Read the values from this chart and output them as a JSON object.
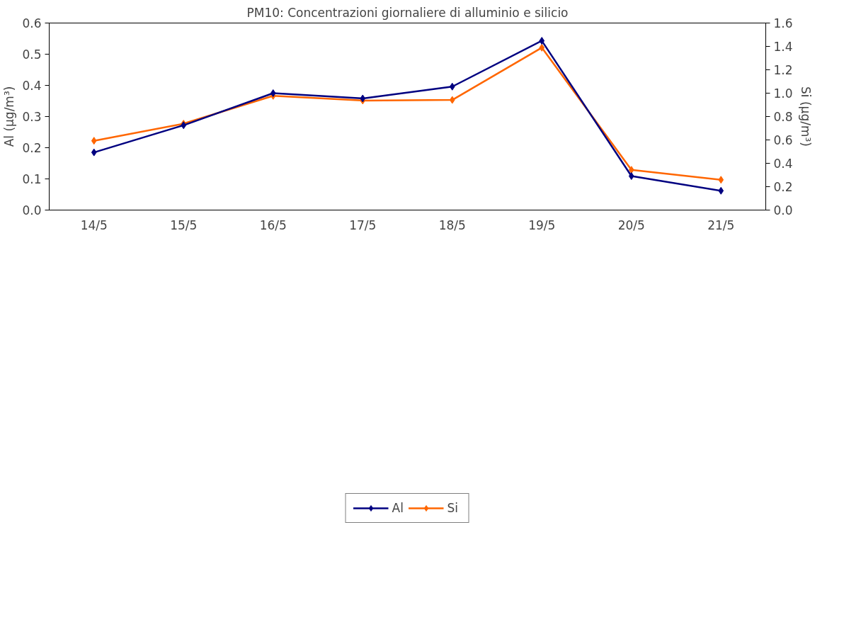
{
  "chart_data": {
    "type": "line",
    "title": "PM10: Concentrazioni giornaliere di alluminio e silicio",
    "ylabel": "Al (µg/m³)",
    "y2label": "Si (µg/m³)",
    "categories": [
      "14/5",
      "15/5",
      "16/5",
      "17/5",
      "18/5",
      "19/5",
      "20/5",
      "21/5"
    ],
    "series": [
      {
        "name": "Al",
        "color": "#000080",
        "values": [
          0.185,
          0.272,
          0.375,
          0.358,
          0.396,
          0.543,
          0.109,
          0.062
        ]
      },
      {
        "name": "Si",
        "color": "#ff6600",
        "axis": "y2",
        "values": [
          0.593,
          0.739,
          0.977,
          0.937,
          0.942,
          1.389,
          0.344,
          0.259
        ]
      }
    ],
    "ylim": [
      0,
      0.6
    ],
    "yticks": [
      {
        "value": 0,
        "label": "0.0"
      },
      0.1,
      0.2,
      0.3,
      0.4,
      0.5,
      0.6
    ],
    "y2lim": [
      0,
      1.6
    ],
    "y2ticks": [
      {
        "value": 0,
        "label": "0.0"
      },
      0.2,
      0.4,
      0.6,
      0.8,
      {
        "value": 1,
        "label": "1.0"
      },
      1.2,
      1.4,
      1.6
    ],
    "marker": "diamond",
    "legend": "bottom",
    "grid": false
  }
}
